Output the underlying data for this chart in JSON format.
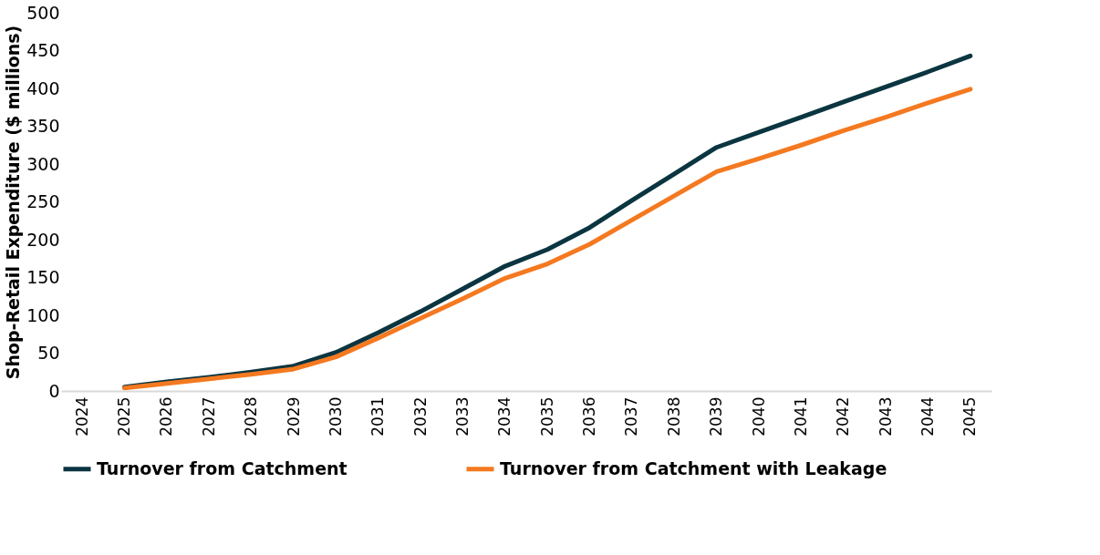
{
  "chart_data": {
    "type": "line",
    "ylabel": "Shop-Retail Expenditure ($ millions)",
    "categories": [
      "2024",
      "2025",
      "2026",
      "2027",
      "2028",
      "2029",
      "2030",
      "2031",
      "2032",
      "2033",
      "2034",
      "2035",
      "2036",
      "2037",
      "2038",
      "2039",
      "2040",
      "2041",
      "2042",
      "2043",
      "2044",
      "2045"
    ],
    "series": [
      {
        "name": "Turnover from Catchment",
        "color": "#0b3540",
        "values": [
          null,
          5,
          12,
          18,
          25,
          33,
          51,
          77,
          105,
          135,
          165,
          187,
          216,
          252,
          287,
          322,
          342,
          362,
          382,
          402,
          422,
          443
        ]
      },
      {
        "name": "Turnover from Catchment with Leakage",
        "color": "#f47920",
        "values": [
          null,
          4,
          10,
          16,
          22,
          29,
          45,
          70,
          96,
          122,
          149,
          168,
          194,
          226,
          258,
          290,
          307,
          325,
          344,
          362,
          381,
          399
        ]
      }
    ],
    "ylim": [
      0,
      500
    ],
    "yticks": [
      0,
      50,
      100,
      150,
      200,
      250,
      300,
      350,
      400,
      450,
      500
    ],
    "grid": false,
    "legend": "bottom",
    "marker": "none",
    "line_style": "solid"
  }
}
